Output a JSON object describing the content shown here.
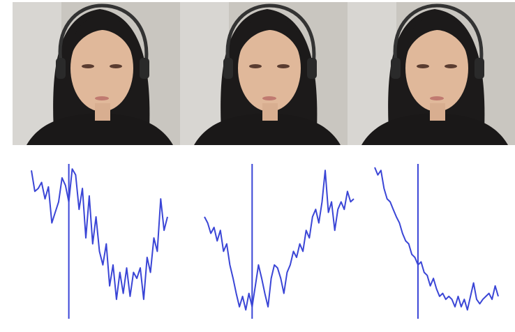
{
  "chart_data": [
    {
      "type": "line",
      "color": "#3a45d6",
      "ylim": [
        0,
        100
      ],
      "marker": 11,
      "values": [
        98,
        84,
        86,
        90,
        79,
        87,
        63,
        70,
        77,
        93,
        88,
        77,
        99,
        95,
        72,
        86,
        53,
        81,
        49,
        67,
        44,
        35,
        49,
        21,
        35,
        12,
        30,
        16,
        33,
        14,
        30,
        26,
        33,
        12,
        40,
        30,
        53,
        44,
        79,
        58,
        67
      ]
    },
    {
      "type": "line",
      "color": "#3a45d6",
      "ylim": [
        0,
        100
      ],
      "marker": 15,
      "values": [
        67,
        63,
        56,
        60,
        51,
        58,
        44,
        49,
        35,
        26,
        16,
        7,
        14,
        5,
        16,
        7,
        21,
        35,
        26,
        16,
        7,
        26,
        35,
        33,
        26,
        16,
        30,
        35,
        44,
        40,
        49,
        44,
        58,
        53,
        67,
        72,
        63,
        77,
        98,
        70,
        77,
        58,
        72,
        77,
        72,
        84,
        77,
        79
      ]
    },
    {
      "type": "line",
      "color": "#3a45d6",
      "ylim": [
        0,
        100
      ],
      "marker": 14,
      "values": [
        100,
        95,
        98,
        86,
        79,
        77,
        72,
        67,
        63,
        56,
        51,
        49,
        42,
        40,
        35,
        37,
        30,
        28,
        21,
        26,
        19,
        14,
        16,
        12,
        14,
        12,
        7,
        14,
        7,
        12,
        5,
        14,
        23,
        12,
        9,
        12,
        14,
        16,
        12,
        21,
        14
      ]
    }
  ]
}
